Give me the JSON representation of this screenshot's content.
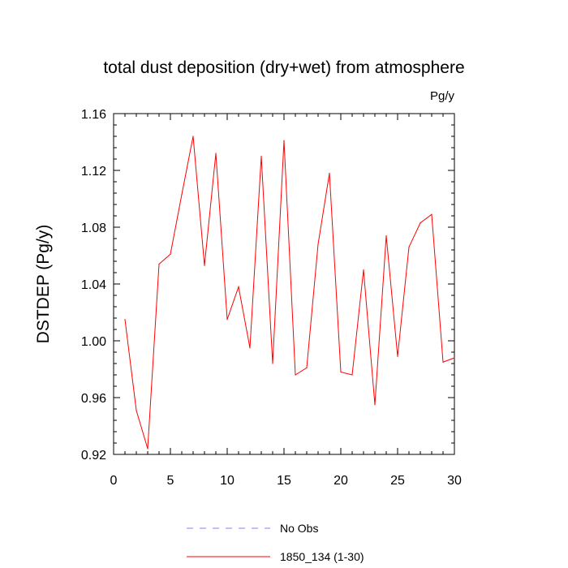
{
  "chart_data": {
    "type": "line",
    "title": "total dust deposition (dry+wet) from atmosphere",
    "units_label": "Pg/y",
    "ylabel": "DSTDEP  (Pg/y)",
    "xlabel": "",
    "xlim": [
      0,
      30
    ],
    "ylim": [
      0.92,
      1.16
    ],
    "x_ticks": [
      "0",
      "5",
      "10",
      "15",
      "20",
      "25",
      "30"
    ],
    "y_ticks": [
      "0.92",
      "0.96",
      "1.00",
      "1.04",
      "1.08",
      "1.12",
      "1.16"
    ],
    "grid": false,
    "legend_position": "bottom",
    "series": [
      {
        "name": "1850_134 (1-30)",
        "color": "#ff0000",
        "style": "solid",
        "x": [
          1,
          2,
          3,
          4,
          5,
          6,
          7,
          8,
          9,
          10,
          11,
          12,
          13,
          14,
          15,
          16,
          17,
          18,
          19,
          20,
          21,
          22,
          23,
          24,
          25,
          26,
          27,
          28,
          29,
          30
        ],
        "values": [
          1.015,
          0.951,
          0.924,
          1.054,
          1.061,
          1.103,
          1.144,
          1.053,
          1.132,
          1.015,
          1.038,
          0.995,
          1.13,
          0.984,
          1.141,
          0.976,
          0.981,
          1.068,
          1.118,
          0.978,
          0.976,
          1.05,
          0.955,
          1.074,
          0.989,
          1.066,
          1.083,
          1.089,
          0.985,
          0.988
        ]
      },
      {
        "name": "No Obs",
        "color": "#8080ff",
        "style": "dashed",
        "x": [],
        "values": []
      }
    ]
  }
}
